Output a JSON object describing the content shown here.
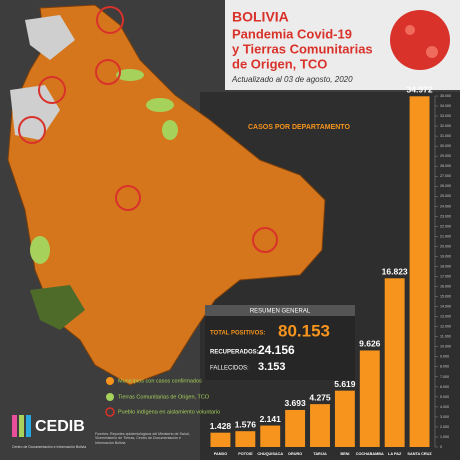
{
  "header": {
    "title": "BOLIVIA",
    "subtitle_lines": [
      "Pandemia Covid-19",
      "y Tierras Comunitarias",
      "de Origen, TCO"
    ],
    "updated": "Actualizado al 03 de agosto, 2020"
  },
  "chart_data": {
    "type": "bar",
    "title": "CASOS POR DEPARTAMENTO",
    "categories": [
      "PANDO",
      "POTOSÍ",
      "CHUQUISACA",
      "ORURO",
      "TARIJA",
      "BENI",
      "COCHABAMBA",
      "LA PAZ",
      "SANTA CRUZ"
    ],
    "values": [
      1428,
      1576,
      2141,
      3693,
      4275,
      5619,
      9626,
      16823,
      34972
    ],
    "value_labels": [
      "1.428",
      "1.576",
      "2.141",
      "3.693",
      "4.275",
      "5.619",
      "9.626",
      "16.823",
      "34.972"
    ],
    "color": "#f7941d",
    "ylim": [
      0,
      35000
    ],
    "yticks": [
      0,
      {
        "value": 1000,
        "label": "1.000"
      },
      {
        "value": 2000,
        "label": "2.000"
      },
      {
        "value": 3000,
        "label": "3.000"
      },
      {
        "value": 4000,
        "label": "4.000"
      },
      {
        "value": 5000,
        "label": "5.000"
      },
      {
        "value": 6000,
        "label": "6.000"
      },
      {
        "value": 7000,
        "label": "7.000"
      },
      {
        "value": 8000,
        "label": "8.000"
      },
      {
        "value": 9000,
        "label": "9.000"
      },
      {
        "value": 10000,
        "label": "10.000"
      },
      {
        "value": 11000,
        "label": "11.000"
      },
      {
        "value": 12000,
        "label": "12.000"
      },
      {
        "value": 13000,
        "label": "13.000"
      },
      {
        "value": 14000,
        "label": "14.000"
      },
      {
        "value": 15000,
        "label": "15.000"
      },
      {
        "value": 16000,
        "label": "16.000"
      },
      {
        "value": 17000,
        "label": "17.000"
      },
      {
        "value": 18000,
        "label": "18.000"
      },
      {
        "value": 19000,
        "label": "19.000"
      },
      {
        "value": 20000,
        "label": "20.000"
      },
      {
        "value": 21000,
        "label": "21.000"
      },
      {
        "value": 22000,
        "label": "22.000"
      },
      {
        "value": 23000,
        "label": "23.000"
      },
      {
        "value": 24000,
        "label": "24.000"
      },
      {
        "value": 25000,
        "label": "25.000"
      },
      {
        "value": 26000,
        "label": "26.000"
      },
      {
        "value": 27000,
        "label": "27.000"
      },
      {
        "value": 28000,
        "label": "28.000"
      },
      {
        "value": 29000,
        "label": "29.000"
      },
      {
        "value": 30000,
        "label": "30.000"
      },
      {
        "value": 31000,
        "label": "31.000"
      },
      {
        "value": 32000,
        "label": "32.000"
      },
      {
        "value": 33000,
        "label": "33.000"
      },
      {
        "value": 34000,
        "label": "34.000"
      },
      {
        "value": 35000,
        "label": "35.000"
      }
    ],
    "grid": false
  },
  "summary": {
    "title": "RESUMEN GENERAL",
    "total_label": "TOTAL POSITIVOS:",
    "total": "80.153",
    "recovered_label": "RECUPERADOS:",
    "recovered": "24.156",
    "deaths_label": "FALLECIDOS:",
    "deaths": "3.153"
  },
  "legend": [
    "Municipios con casos confirmados",
    "Tierras Comunitarias de Origen, TCO",
    "Pueblo indígena en aislamiento voluntario"
  ],
  "logo": {
    "name": "CEDIB",
    "full": "Centro de Documentación e Información Bolivia"
  },
  "source": "Fuentes: Reportes epidemiológicos del Ministerio de Salud, Viceministerio de Tierras, Centro de Documentación e Información Bolivia"
}
